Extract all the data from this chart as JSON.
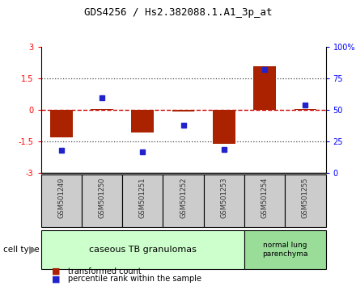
{
  "title": "GDS4256 / Hs2.382088.1.A1_3p_at",
  "samples": [
    "GSM501249",
    "GSM501250",
    "GSM501251",
    "GSM501252",
    "GSM501253",
    "GSM501254",
    "GSM501255"
  ],
  "transformed_counts": [
    -1.3,
    0.05,
    -1.05,
    -0.05,
    -1.6,
    2.1,
    0.05
  ],
  "percentile_ranks": [
    18,
    60,
    17,
    38,
    19,
    82,
    54
  ],
  "ylim_left": [
    -3,
    3
  ],
  "ylim_right": [
    0,
    100
  ],
  "yticks_left": [
    -3,
    -1.5,
    0,
    1.5,
    3
  ],
  "yticks_right": [
    0,
    25,
    50,
    75,
    100
  ],
  "ytick_labels_left": [
    "-3",
    "-1.5",
    "0",
    "1.5",
    "3"
  ],
  "ytick_labels_right": [
    "0",
    "25",
    "50",
    "75",
    "100%"
  ],
  "bar_color": "#aa2200",
  "dot_color": "#2222cc",
  "dotted_line_color": "#444444",
  "hline_color": "#cc0000",
  "group1_label": "caseous TB granulomas",
  "group2_label": "normal lung\nparenchyma",
  "group1_indices": [
    0,
    1,
    2,
    3,
    4
  ],
  "group2_indices": [
    5,
    6
  ],
  "group1_color": "#ccffcc",
  "group2_color": "#99dd99",
  "sample_box_color": "#cccccc",
  "cell_type_label": "cell type",
  "legend_bar_label": "transformed count",
  "legend_dot_label": "percentile rank within the sample",
  "bar_width": 0.55,
  "title_fontsize": 9,
  "tick_fontsize": 7,
  "sample_fontsize": 6,
  "group_fontsize": 8,
  "legend_fontsize": 7
}
